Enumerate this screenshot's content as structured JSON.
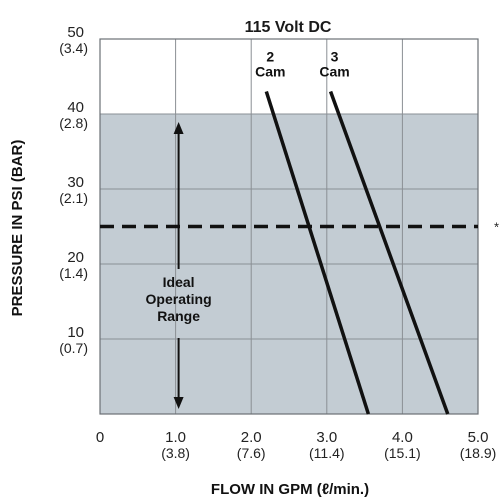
{
  "chart_data": {
    "type": "line",
    "title": "115 Volt DC",
    "xlabel": "FLOW IN GPM (ℓ/min.)",
    "ylabel": "PRESSURE IN PSI (BAR)",
    "xlim": [
      0,
      5
    ],
    "ylim": [
      0,
      50
    ],
    "x_ticks": [
      {
        "value": 0,
        "label": "0",
        "sub": ""
      },
      {
        "value": 1,
        "label": "1.0",
        "sub": "(3.8)"
      },
      {
        "value": 2,
        "label": "2.0",
        "sub": "(7.6)"
      },
      {
        "value": 3,
        "label": "3.0",
        "sub": "(11.4)"
      },
      {
        "value": 4,
        "label": "4.0",
        "sub": "(15.1)"
      },
      {
        "value": 5,
        "label": "5.0",
        "sub": "(18.9)"
      }
    ],
    "y_ticks": [
      {
        "value": 10,
        "label": "10",
        "sub": "(0.7)"
      },
      {
        "value": 20,
        "label": "20",
        "sub": "(1.4)"
      },
      {
        "value": 30,
        "label": "30",
        "sub": "(2.1)"
      },
      {
        "value": 40,
        "label": "40",
        "sub": "(2.8)"
      },
      {
        "value": 50,
        "label": "50",
        "sub": "(3.4)"
      }
    ],
    "grid": true,
    "series": [
      {
        "name": "2 Cam",
        "label_lines": [
          "2",
          "Cam"
        ],
        "x": [
          2.2,
          3.55
        ],
        "y": [
          43,
          0
        ]
      },
      {
        "name": "3 Cam",
        "label_lines": [
          "3",
          "Cam"
        ],
        "x": [
          3.05,
          4.6
        ],
        "y": [
          43,
          0
        ]
      }
    ],
    "shaded_region": {
      "y0": 0,
      "y1": 40,
      "color": "#c3ccd3"
    },
    "reference_line": {
      "y": 25,
      "style": "dashed",
      "marker": "*"
    },
    "annotation": {
      "lines": [
        "Ideal",
        "Operating",
        "Range"
      ],
      "x": 1.0,
      "arrow_from": 40,
      "arrow_to": 0
    }
  }
}
